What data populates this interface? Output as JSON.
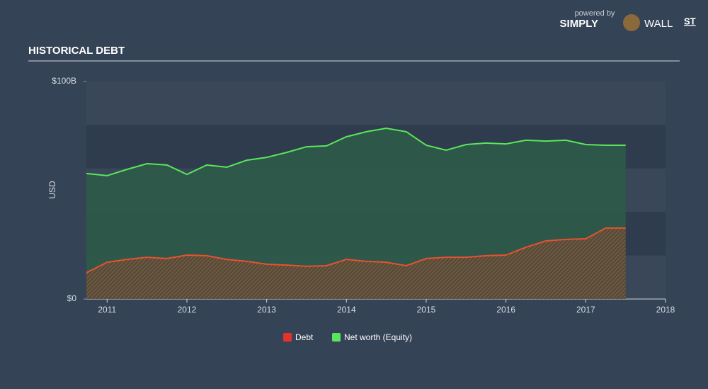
{
  "brand": {
    "powered": "powered by",
    "name": "SIMPLY",
    "name2": "WALL",
    "name3": "ST"
  },
  "chart_data": {
    "type": "area",
    "title": "HISTORICAL DEBT",
    "y_label": "USD",
    "x": [
      2010.74,
      2011.0,
      2011.25,
      2011.5,
      2011.75,
      2012.0,
      2012.25,
      2012.5,
      2012.75,
      2013.0,
      2013.25,
      2013.5,
      2013.75,
      2014.0,
      2014.25,
      2014.5,
      2014.75,
      2015.0,
      2015.25,
      2015.5,
      2015.75,
      2016.0,
      2016.25,
      2016.5,
      2016.75,
      2017.0,
      2017.25,
      2017.5
    ],
    "series": [
      {
        "name": "Debt",
        "color": "#e8512e",
        "legend_color": "#e5322d",
        "values": [
          12.1,
          16.9,
          18.2,
          19.2,
          18.6,
          20.2,
          19.9,
          18.2,
          17.3,
          16.0,
          15.6,
          15.0,
          15.3,
          18.2,
          17.3,
          16.9,
          15.3,
          18.6,
          19.2,
          19.2,
          19.9,
          20.2,
          23.8,
          26.7,
          27.4,
          27.7,
          32.6,
          32.6
        ]
      },
      {
        "name": "Net worth (Equity)",
        "color": "#5ae65a",
        "legend_color": "#5ae65a",
        "values": [
          57.7,
          56.7,
          59.6,
          62.2,
          61.6,
          57.3,
          61.6,
          60.6,
          63.8,
          65.1,
          67.4,
          70.0,
          70.4,
          74.6,
          76.9,
          78.5,
          76.9,
          70.7,
          68.4,
          71.0,
          71.7,
          71.3,
          73.0,
          72.6,
          73.0,
          71.0,
          70.7,
          70.7
        ]
      }
    ],
    "xlim": [
      2010.74,
      2018
    ],
    "xticks": [
      2011,
      2012,
      2013,
      2014,
      2015,
      2016,
      2017,
      2018
    ],
    "ylim": [
      0,
      100
    ],
    "yticks": [
      {
        "value": 0,
        "label": "$0"
      },
      {
        "value": 100,
        "label": "$100B"
      }
    ],
    "grid": true
  }
}
